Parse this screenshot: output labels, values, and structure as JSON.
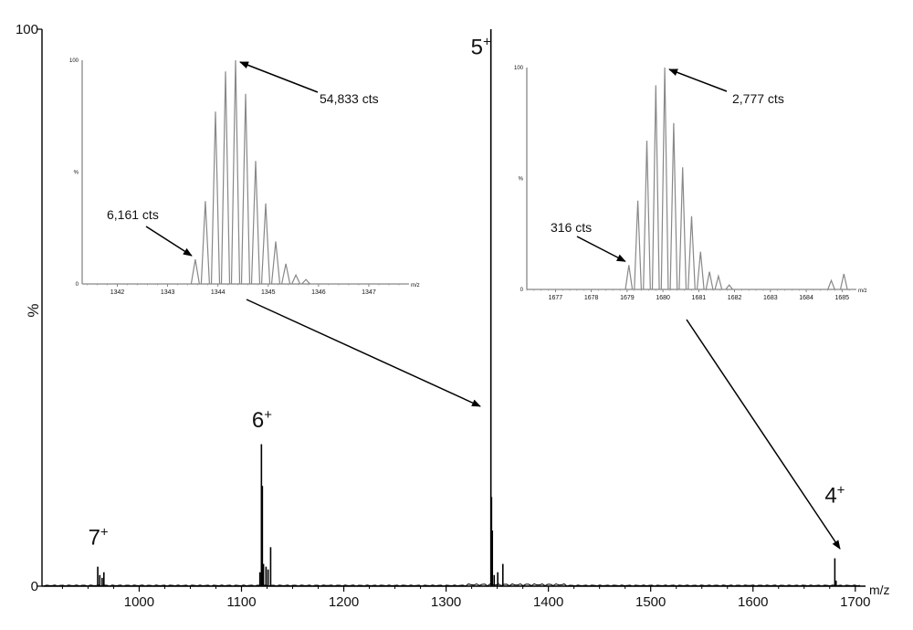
{
  "chart_data": [
    {
      "id": "main",
      "type": "line",
      "ylabel": "%",
      "xlabel": "m/z",
      "xlim": [
        905,
        1710
      ],
      "ylim": [
        0,
        100
      ],
      "x_ticks": [
        1000,
        1100,
        1200,
        1300,
        1400,
        1500,
        1600,
        1700
      ],
      "y_ticks": [
        0,
        100
      ],
      "peaks": [
        {
          "x": 959.5,
          "y": 3.5
        },
        {
          "x": 961.5,
          "y": 2.0
        },
        {
          "x": 963.8,
          "y": 1.5
        },
        {
          "x": 965.5,
          "y": 2.5
        },
        {
          "x": 1118,
          "y": 2.5
        },
        {
          "x": 1119.5,
          "y": 25.5
        },
        {
          "x": 1120.4,
          "y": 18.0
        },
        {
          "x": 1121.5,
          "y": 4.0
        },
        {
          "x": 1124,
          "y": 3.5
        },
        {
          "x": 1126,
          "y": 3.0
        },
        {
          "x": 1128.5,
          "y": 7.0
        },
        {
          "x": 1343.8,
          "y": 100
        },
        {
          "x": 1344.4,
          "y": 16.0
        },
        {
          "x": 1345.2,
          "y": 10.0
        },
        {
          "x": 1347,
          "y": 2.0
        },
        {
          "x": 1350.5,
          "y": 2.5
        },
        {
          "x": 1355.5,
          "y": 4.0
        },
        {
          "x": 1680,
          "y": 5.0
        },
        {
          "x": 1681.2,
          "y": 1.0
        }
      ],
      "annotations": [
        {
          "base": "7",
          "sup": "+",
          "x": 960,
          "y": 7.5
        },
        {
          "base": "6",
          "sup": "+",
          "x": 1120,
          "y": 28.5
        },
        {
          "base": "5",
          "sup": "+",
          "x": 1334,
          "y": 95.5
        },
        {
          "base": "4",
          "sup": "+",
          "x": 1680,
          "y": 15.0
        }
      ]
    },
    {
      "id": "inset-5plus",
      "type": "line",
      "xlabel": "m/z",
      "xlim": [
        1341.3,
        1347.8
      ],
      "ylim": [
        0,
        100
      ],
      "x_ticks": [
        1342,
        1343,
        1344,
        1345,
        1346,
        1347
      ],
      "y_tick_labels": [
        "0",
        "%",
        "100"
      ],
      "peaks": [
        {
          "x": 1343.55,
          "y": 11
        },
        {
          "x": 1343.75,
          "y": 37
        },
        {
          "x": 1343.95,
          "y": 77
        },
        {
          "x": 1344.15,
          "y": 95
        },
        {
          "x": 1344.35,
          "y": 100
        },
        {
          "x": 1344.55,
          "y": 85
        },
        {
          "x": 1344.75,
          "y": 55
        },
        {
          "x": 1344.95,
          "y": 36
        },
        {
          "x": 1345.15,
          "y": 19
        },
        {
          "x": 1345.35,
          "y": 9
        },
        {
          "x": 1345.55,
          "y": 4
        },
        {
          "x": 1345.75,
          "y": 2
        }
      ],
      "annotations": [
        {
          "text": "54,833 cts",
          "x": 1344.35,
          "y": 100
        },
        {
          "text": "6,161 cts",
          "x": 1343.55,
          "y": 11
        }
      ]
    },
    {
      "id": "inset-4plus",
      "type": "line",
      "xlabel": "m/z",
      "xlim": [
        1676.2,
        1685.4
      ],
      "ylim": [
        0,
        100
      ],
      "x_ticks": [
        1677,
        1678,
        1679,
        1680,
        1681,
        1682,
        1683,
        1684,
        1685
      ],
      "y_tick_labels": [
        "0",
        "%",
        "100"
      ],
      "peaks": [
        {
          "x": 1679.05,
          "y": 11
        },
        {
          "x": 1679.3,
          "y": 40
        },
        {
          "x": 1679.55,
          "y": 67
        },
        {
          "x": 1679.8,
          "y": 92
        },
        {
          "x": 1680.05,
          "y": 100
        },
        {
          "x": 1680.3,
          "y": 75
        },
        {
          "x": 1680.55,
          "y": 55
        },
        {
          "x": 1680.8,
          "y": 33
        },
        {
          "x": 1681.05,
          "y": 17
        },
        {
          "x": 1681.3,
          "y": 8
        },
        {
          "x": 1681.55,
          "y": 6
        },
        {
          "x": 1681.85,
          "y": 2
        },
        {
          "x": 1684.7,
          "y": 4
        },
        {
          "x": 1685.05,
          "y": 7
        }
      ],
      "annotations": [
        {
          "text": "2,777 cts",
          "x": 1680.05,
          "y": 100
        },
        {
          "text": "316 cts",
          "x": 1679.05,
          "y": 11
        }
      ]
    }
  ]
}
